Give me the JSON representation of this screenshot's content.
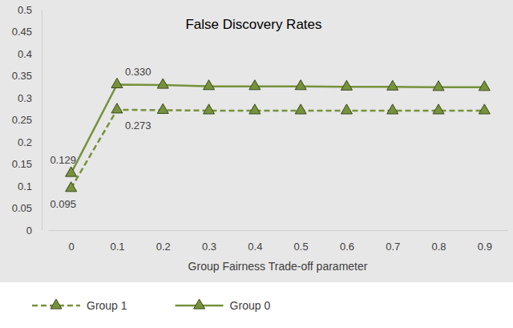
{
  "chart_data": {
    "type": "line",
    "title": "False Discovery Rates",
    "x_label": "Group Fairness Trade-off parameter",
    "categories": [
      "0",
      "0.1",
      "0.2",
      "0.3",
      "0.4",
      "0.5",
      "0.6",
      "0.7",
      "0.8",
      "0.9"
    ],
    "series": [
      {
        "name": "Group 1",
        "color": "#76923c",
        "line_style": "dashed",
        "marker": "triangle",
        "values": [
          0.095,
          0.273,
          0.272,
          0.271,
          0.271,
          0.271,
          0.271,
          0.271,
          0.271,
          0.271
        ],
        "value_labels": [
          "0.095",
          "0.273",
          null,
          null,
          null,
          null,
          null,
          null,
          null,
          null
        ]
      },
      {
        "name": "Group 0",
        "color": "#76923c",
        "line_style": "solid",
        "marker": "triangle",
        "values": [
          0.129,
          0.33,
          0.329,
          0.326,
          0.326,
          0.326,
          0.325,
          0.325,
          0.324,
          0.324
        ],
        "value_labels": [
          "0.129",
          "0.330",
          null,
          null,
          null,
          null,
          null,
          null,
          null,
          null
        ]
      }
    ],
    "ylim": [
      0,
      0.5
    ],
    "yticks": [
      0,
      0.05,
      0.1,
      0.15,
      0.2,
      0.25,
      0.3,
      0.35,
      0.4,
      0.45,
      0.5
    ],
    "grid": false,
    "legend": "bottom",
    "data_labels": true
  }
}
